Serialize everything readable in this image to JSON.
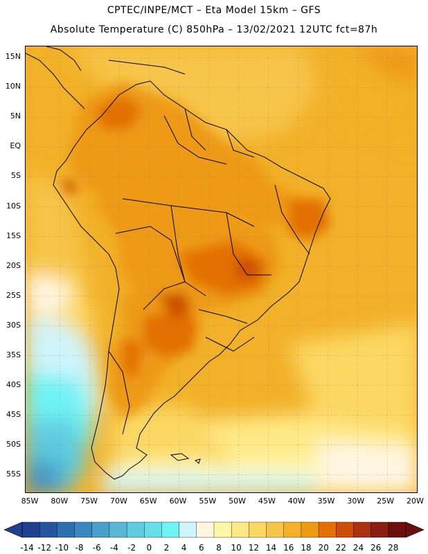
{
  "header": {
    "line1": "CPTEC/INPE/MCT –  Eta Model 15km – GFS",
    "line2": "Absolute Temperature (C) 850hPa – 13/02/2021 12UTC fct=87h"
  },
  "axes": {
    "lat_labels": [
      "15N",
      "10N",
      "5N",
      "EQ",
      "5S",
      "10S",
      "15S",
      "20S",
      "25S",
      "30S",
      "35S",
      "40S",
      "45S",
      "50S",
      "55S"
    ],
    "lon_labels": [
      "85W",
      "80W",
      "75W",
      "70W",
      "65W",
      "60W",
      "55W",
      "50W",
      "45W",
      "40W",
      "35W",
      "30W",
      "25W",
      "20W"
    ]
  },
  "colorbar": {
    "ticks": [
      "-14",
      "-12",
      "-10",
      "-8",
      "-6",
      "-4",
      "-2",
      "0",
      "2",
      "4",
      "6",
      "8",
      "10",
      "12",
      "14",
      "16",
      "18",
      "20",
      "22",
      "24",
      "26",
      "28"
    ],
    "colors": [
      "#1f3f8f",
      "#26559f",
      "#2e6fb0",
      "#3b87c0",
      "#4aa0cc",
      "#58b6d6",
      "#5fcbe0",
      "#66dfea",
      "#6ff2f4",
      "#cff4fb",
      "#fff6e2",
      "#fff7a8",
      "#ffe987",
      "#fbd863",
      "#f7c54a",
      "#f2b128",
      "#ee9a12",
      "#e36f05",
      "#cd4e06",
      "#aa3210",
      "#871f13",
      "#6b0f0e"
    ]
  },
  "icons": {
    "left_arrow": "triangle-left-icon",
    "right_arrow": "triangle-right-icon"
  }
}
